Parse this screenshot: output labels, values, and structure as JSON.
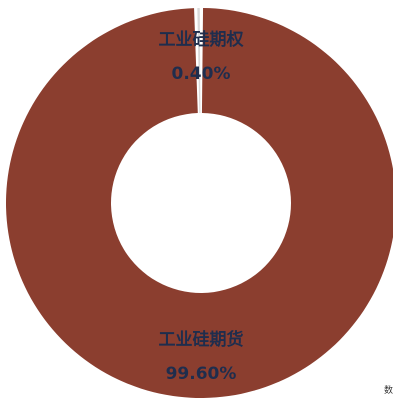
{
  "chart_data": {
    "type": "pie",
    "variant": "donut",
    "categories": [
      "工业硅期货",
      "工业硅期权"
    ],
    "values": [
      99.6,
      0.4
    ],
    "labels": [
      "99.60%",
      "0.40%"
    ],
    "colors": [
      "#8b3e2f",
      "#d9d9d9"
    ],
    "title": "",
    "legend": "none"
  },
  "corner_text": "数"
}
